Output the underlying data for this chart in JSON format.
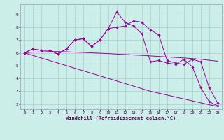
{
  "xlabel": "Windchill (Refroidissement éolien,°C)",
  "x": [
    0,
    1,
    2,
    3,
    4,
    5,
    6,
    7,
    8,
    9,
    10,
    11,
    12,
    13,
    14,
    15,
    16,
    17,
    18,
    19,
    20,
    21,
    22,
    23
  ],
  "line1_marked": [
    6.0,
    6.3,
    6.2,
    6.2,
    5.9,
    6.3,
    7.0,
    7.1,
    6.5,
    7.0,
    7.9,
    8.0,
    8.1,
    8.5,
    8.4,
    7.8,
    7.4,
    5.4,
    5.2,
    5.1,
    5.5,
    5.3,
    3.3,
    2.1
  ],
  "line2_marked": [
    6.0,
    6.3,
    6.2,
    6.2,
    5.9,
    6.3,
    7.0,
    7.1,
    6.5,
    7.0,
    7.9,
    9.2,
    8.4,
    8.1,
    7.5,
    5.3,
    5.4,
    5.2,
    5.1,
    5.5,
    4.9,
    3.3,
    2.2,
    1.85
  ],
  "line3_smooth": [
    6.0,
    6.05,
    6.07,
    6.1,
    6.1,
    6.08,
    6.05,
    6.03,
    6.0,
    5.97,
    5.94,
    5.9,
    5.87,
    5.83,
    5.8,
    5.76,
    5.72,
    5.68,
    5.64,
    5.6,
    5.55,
    5.5,
    5.42,
    5.35
  ],
  "line4_smooth": [
    6.0,
    5.8,
    5.6,
    5.4,
    5.2,
    5.0,
    4.8,
    4.6,
    4.4,
    4.2,
    4.0,
    3.8,
    3.6,
    3.4,
    3.2,
    3.0,
    2.85,
    2.7,
    2.55,
    2.4,
    2.25,
    2.1,
    1.95,
    1.82
  ],
  "bg_color": "#cceee8",
  "grid_color": "#aacccc",
  "line_color": "#990099",
  "ylim": [
    1.6,
    9.8
  ],
  "yticks": [
    2,
    3,
    4,
    5,
    6,
    7,
    8,
    9
  ],
  "xlim": [
    -0.5,
    23.5
  ]
}
